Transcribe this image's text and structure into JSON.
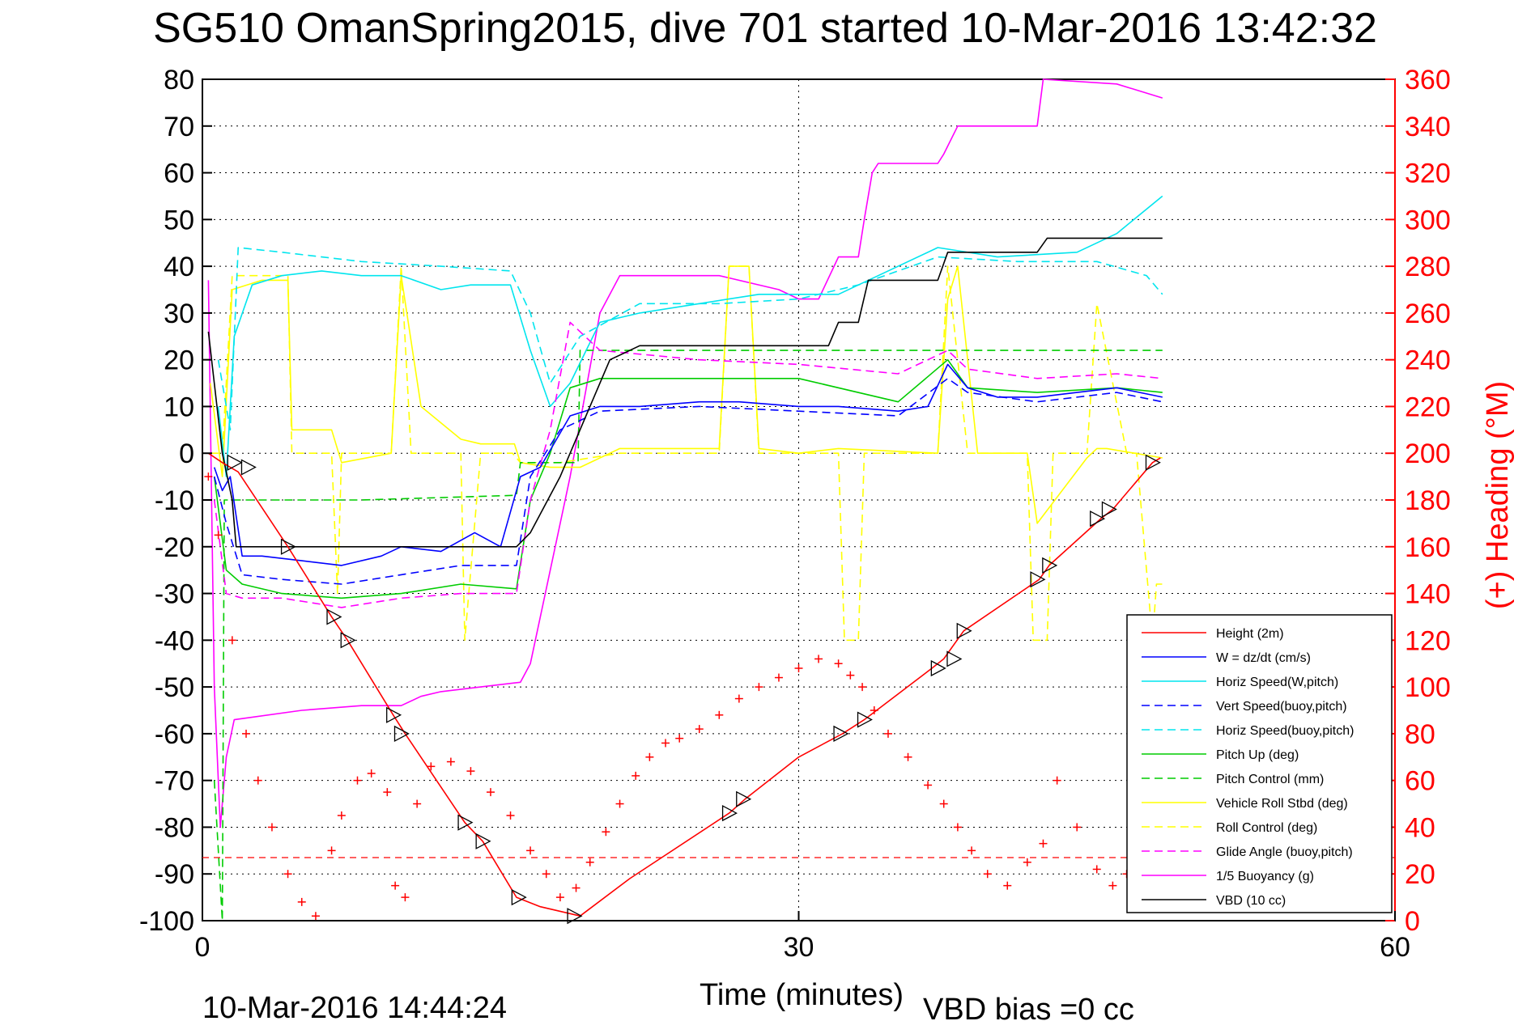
{
  "chart_data": {
    "type": "line",
    "title": "SG510 OmanSpring2015, dive 701 started 10-Mar-2016 13:42:32",
    "xlabel": "Time (minutes)",
    "ylabel_right": "(+) Heading (°M)",
    "xlim": [
      0,
      60
    ],
    "ylim": [
      -100,
      80
    ],
    "ylim_right": [
      0,
      360
    ],
    "xticks": [
      "0",
      "30",
      "60"
    ],
    "yticks": [
      "80",
      "70",
      "60",
      "50",
      "40",
      "30",
      "20",
      "10",
      "0",
      "-10",
      "-20",
      "-30",
      "-40",
      "-50",
      "-60",
      "-70",
      "-80",
      "-90",
      "-100"
    ],
    "yticks_right": [
      "360",
      "340",
      "320",
      "300",
      "280",
      "260",
      "240",
      "220",
      "200",
      "180",
      "160",
      "140",
      "120",
      "100",
      "80",
      "60",
      "40",
      "20",
      "0"
    ],
    "grid": "dotted at x=30, y=0",
    "legend_position": "bottom-right",
    "footer_left": "10-Mar-2016 14:44:24",
    "footer_right": "VBD bias =0 cc",
    "colors": {
      "red": "#ff0000",
      "blue": "#0000ff",
      "cyan": "#00e5ee",
      "green": "#00cc00",
      "yellow": "#ffff00",
      "magenta": "#ff00ff",
      "black": "#000000"
    },
    "series": [
      {
        "name": "Height (2m)",
        "color": "#ff0000",
        "style": "solid",
        "x": [
          0.3,
          1.0,
          1.8,
          4.3,
          6.5,
          7.3,
          9.6,
          10.2,
          13.2,
          14.1,
          15.8,
          17.0,
          19.0,
          21.5,
          26.5,
          27.3,
          30.0,
          32.2,
          33.3,
          36.7,
          37.3,
          38.3,
          42.1,
          42.6,
          45.2,
          45.8,
          47.8,
          48.2
        ],
        "y": [
          0,
          -2,
          -4,
          -20,
          -35,
          -40,
          -56,
          -60,
          -79,
          -83,
          -95,
          -97,
          -99,
          -91,
          -77,
          -74,
          -65,
          -60,
          -57,
          -46,
          -44,
          -38,
          -27,
          -24,
          -14,
          -12,
          -2,
          -1
        ]
      },
      {
        "name": "W = dz/dt (cm/s)",
        "color": "#0000ff",
        "style": "solid",
        "x": [
          0.6,
          1.0,
          1.4,
          2.0,
          3.0,
          5.0,
          7.0,
          9.0,
          10.0,
          12.0,
          13.7,
          15.0,
          16.0,
          17.0,
          18.5,
          20.0,
          22.0,
          25.0,
          27.0,
          30.0,
          32.0,
          35.0,
          36.5,
          37.5,
          38.5,
          40.0,
          42.0,
          44.0,
          46.0,
          48.3
        ],
        "y": [
          -3,
          -8,
          -5,
          -22,
          -22,
          -23,
          -24,
          -22,
          -20,
          -21,
          -17,
          -20,
          -5,
          -3,
          8,
          10,
          10,
          11,
          11,
          10,
          10,
          9,
          10,
          19,
          14,
          12,
          12,
          13,
          14,
          12
        ]
      },
      {
        "name": "Horiz Speed(W,pitch)",
        "color": "#00e5ee",
        "style": "solid",
        "x": [
          0.8,
          1.2,
          1.6,
          2.5,
          4.0,
          6.0,
          8.0,
          10.0,
          12.0,
          13.5,
          15.5,
          16.5,
          17.5,
          18.5,
          20.0,
          22.0,
          25.0,
          28.0,
          30.0,
          32.0,
          34.0,
          37.0,
          40.0,
          44.0,
          46.0,
          48.3
        ],
        "y": [
          10,
          -5,
          25,
          36,
          38,
          39,
          38,
          38,
          35,
          36,
          36,
          22,
          10,
          15,
          28,
          30,
          32,
          34,
          34,
          34,
          38,
          44,
          42,
          43,
          47,
          55
        ]
      },
      {
        "name": "Vert Speed(buoy,pitch)",
        "color": "#0000ff",
        "style": "dashed",
        "x": [
          0.6,
          1.2,
          2.0,
          4.0,
          7.0,
          10.0,
          13.0,
          15.8,
          16.5,
          18.0,
          20.0,
          25.0,
          30.0,
          35.0,
          37.5,
          38.5,
          42.0,
          46.0,
          48.3
        ],
        "y": [
          -5,
          -15,
          -26,
          -27,
          -28,
          -26,
          -24,
          -24,
          -5,
          5,
          9,
          10,
          9,
          8,
          16,
          13,
          11,
          13,
          11
        ]
      },
      {
        "name": "Horiz Speed(buoy,pitch)",
        "color": "#00e5ee",
        "style": "dashed",
        "x": [
          0.8,
          1.4,
          1.8,
          4.0,
          8.0,
          12.0,
          15.5,
          16.5,
          17.5,
          19.0,
          22.0,
          26.0,
          30.0,
          33.0,
          37.0,
          41.0,
          45.0,
          47.5,
          48.3
        ],
        "y": [
          20,
          5,
          44,
          43,
          41,
          40,
          39,
          30,
          15,
          25,
          32,
          32,
          33,
          36,
          42,
          41,
          41,
          38,
          34
        ]
      },
      {
        "name": "Pitch Up (deg)",
        "color": "#00cc00",
        "style": "solid",
        "x": [
          0.6,
          1.2,
          2.0,
          4.0,
          7.0,
          10.0,
          13.0,
          15.8,
          16.5,
          17.5,
          18.5,
          20.0,
          25.0,
          30.0,
          35.0,
          37.5,
          38.5,
          42.0,
          46.0,
          48.3
        ],
        "y": [
          -5,
          -25,
          -28,
          -30,
          -31,
          -30,
          -28,
          -29,
          -10,
          0,
          14,
          16,
          16,
          16,
          11,
          20,
          14,
          13,
          14,
          13
        ]
      },
      {
        "name": "Pitch Control (mm)",
        "color": "#00cc00",
        "style": "dashed",
        "x": [
          0.6,
          1.0,
          1.1,
          1.4,
          2.0,
          8.0,
          15.8,
          16.0,
          18.9,
          19.0,
          37.0,
          48.3
        ],
        "y": [
          -70,
          -100,
          -10,
          -10,
          -10,
          -10,
          -9,
          -2,
          -2,
          22,
          22,
          22
        ]
      },
      {
        "name": "Vehicle Roll Stbd (deg)",
        "color": "#ffff00",
        "style": "solid",
        "x": [
          0.4,
          1.0,
          1.5,
          3.0,
          4.3,
          4.5,
          6.5,
          7.0,
          9.5,
          10.0,
          11.0,
          13.0,
          14.0,
          15.7,
          16.0,
          17.5,
          19.0,
          21.0,
          26.0,
          26.5,
          27.5,
          28.0,
          30.0,
          32.0,
          37.0,
          37.5,
          38.0,
          39.0,
          41.5,
          42.0,
          44.5,
          45.0,
          45.5,
          48.3
        ],
        "y": [
          15,
          -5,
          35,
          37,
          37,
          5,
          5,
          -2,
          0,
          38,
          10,
          3,
          2,
          2,
          -2,
          -3,
          -3,
          1,
          1,
          40,
          40,
          1,
          0,
          1,
          0,
          33,
          40,
          0,
          0,
          -15,
          -1,
          1,
          1,
          -1
        ]
      },
      {
        "name": "Roll Control (deg)",
        "color": "#ffff00",
        "style": "dashed",
        "x": [
          0.4,
          1.0,
          1.5,
          4.3,
          4.5,
          6.5,
          6.8,
          7.0,
          9.5,
          10.0,
          10.5,
          13.0,
          13.2,
          14.0,
          15.6,
          16.0,
          18.0,
          21.0,
          26.0,
          26.5,
          27.5,
          28.0,
          30.0,
          32.0,
          32.3,
          33.0,
          33.3,
          37.0,
          37.5,
          38.5,
          41.5,
          41.8,
          42.5,
          42.8,
          44.5,
          45.0,
          46.5,
          47.0,
          47.8,
          48.0,
          48.3
        ],
        "y": [
          0,
          0,
          38,
          38,
          0,
          0,
          -30,
          0,
          0,
          40,
          0,
          0,
          -40,
          0,
          0,
          -2,
          -2,
          0,
          0,
          40,
          40,
          0,
          0,
          0,
          -40,
          -40,
          0,
          0,
          40,
          0,
          0,
          -40,
          -40,
          0,
          0,
          32,
          0,
          0,
          -40,
          -28,
          -28
        ]
      },
      {
        "name": "Glide Angle (buoy,pitch)",
        "color": "#ff00ff",
        "style": "dashed",
        "x": [
          0.6,
          1.2,
          2.0,
          4.0,
          7.0,
          10.0,
          13.0,
          15.8,
          16.5,
          17.5,
          18.5,
          20.0,
          25.0,
          30.0,
          35.0,
          37.5,
          38.5,
          42.0,
          46.0,
          48.3
        ],
        "y": [
          -10,
          -30,
          -31,
          -31,
          -33,
          -31,
          -30,
          -30,
          -10,
          5,
          28,
          22,
          20,
          19,
          17,
          22,
          18,
          16,
          17,
          16
        ]
      },
      {
        "name": "1/5 Buoyancy (g)",
        "color": "#ff00ff",
        "style": "solid",
        "x": [
          0.3,
          0.6,
          0.9,
          1.2,
          1.6,
          5.0,
          8.0,
          10.0,
          11.0,
          12.0,
          14.0,
          16.0,
          16.5,
          18.5,
          20.0,
          21.0,
          26.0,
          29.0,
          30.0,
          31.0,
          32.0,
          33.0,
          33.3,
          33.7,
          34.0,
          37.0,
          37.3,
          38.0,
          41.0,
          42.0,
          42.3,
          46.0,
          48.3
        ],
        "y": [
          37,
          -50,
          -80,
          -65,
          -57,
          -55,
          -54,
          -54,
          -52,
          -51,
          -50,
          -49,
          -45,
          -5,
          30,
          38,
          38,
          35,
          33,
          33,
          42,
          42,
          50,
          60,
          62,
          62,
          64,
          70,
          70,
          70,
          80,
          79,
          76
        ]
      },
      {
        "name": "VBD (10 cc)",
        "color": "#000000",
        "style": "solid",
        "x": [
          0.3,
          1.0,
          1.5,
          1.7,
          5.0,
          15.8,
          16.5,
          18.0,
          19.5,
          20.5,
          22.0,
          27.0,
          31.5,
          32.0,
          33.0,
          33.5,
          37.0,
          37.5,
          42.0,
          42.5,
          48.3
        ],
        "y": [
          26,
          0,
          -10,
          -20,
          -20,
          -20,
          -17,
          -5,
          10,
          20,
          23,
          23,
          23,
          28,
          28,
          37,
          37,
          43,
          43,
          46,
          46
        ]
      },
      {
        "name": "Heading (+)",
        "color": "#ff0000",
        "style": "markers",
        "axis": "right",
        "x": [
          0.3,
          0.8,
          1.5,
          2.2,
          2.8,
          3.5,
          4.3,
          5.0,
          5.7,
          6.5,
          7.0,
          7.8,
          8.5,
          9.3,
          9.7,
          10.2,
          10.8,
          11.5,
          12.5,
          13.5,
          14.5,
          15.5,
          16.5,
          17.3,
          18.0,
          18.8,
          19.5,
          20.3,
          21.0,
          21.8,
          22.5,
          23.3,
          24.0,
          25.0,
          26.0,
          27.0,
          28.0,
          29.0,
          30.0,
          31.0,
          32.0,
          32.6,
          33.2,
          33.8,
          34.5,
          35.5,
          36.5,
          37.3,
          38.0,
          38.7,
          39.5,
          40.5,
          41.5,
          42.3,
          43.0,
          44.0,
          45.0,
          45.8,
          46.5
        ],
        "y": [
          190,
          165,
          120,
          80,
          60,
          40,
          20,
          8,
          2,
          30,
          45,
          60,
          63,
          55,
          15,
          10,
          50,
          66,
          68,
          64,
          55,
          45,
          30,
          20,
          10,
          14,
          25,
          38,
          50,
          62,
          70,
          76,
          78,
          82,
          88,
          95,
          100,
          104,
          108,
          112,
          110,
          105,
          100,
          90,
          80,
          70,
          58,
          50,
          40,
          30,
          20,
          15,
          25,
          33,
          60,
          40,
          22,
          15,
          20
        ]
      }
    ],
    "legend": [
      "Height (2m)",
      "W = dz/dt (cm/s)",
      "Horiz Speed(W,pitch)",
      "Vert Speed(buoy,pitch)",
      "Horiz Speed(buoy,pitch)",
      "Pitch Up (deg)",
      "Pitch Control (mm)",
      "Vehicle Roll Stbd (deg)",
      "Roll Control (deg)",
      "Glide Angle (buoy,pitch)",
      "1/5 Buoyancy (g)",
      "VBD (10 cc)"
    ],
    "markers_triangle_x": [
      1.6,
      2.3,
      4.3,
      6.6,
      7.3,
      9.6,
      10.0,
      13.2,
      14.1,
      15.9,
      18.7,
      26.5,
      27.2,
      32.1,
      33.3,
      37.0,
      37.8,
      38.3,
      42.0,
      42.6,
      45.0,
      45.6,
      47.8
    ],
    "markers_triangle_y": [
      -2,
      -3,
      -20,
      -35,
      -40,
      -56,
      -60,
      -79,
      -83,
      -95,
      -99,
      -77,
      -74,
      -60,
      -57,
      -46,
      -44,
      -38,
      -27,
      -24,
      -14,
      -12,
      -2
    ],
    "reference_line_right": 27
  }
}
